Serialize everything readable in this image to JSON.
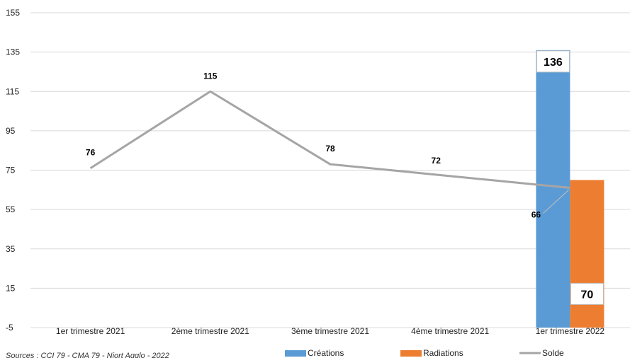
{
  "chart_data": {
    "type": "bar",
    "categories": [
      "1er trimestre 2021",
      "2ème trimestre 2021",
      "3ème trimestre 2021",
      "4ème trimestre 2021",
      "1er trimestre 2022"
    ],
    "series": [
      {
        "name": "Créations",
        "kind": "bar",
        "values": [
          null,
          null,
          null,
          null,
          136
        ],
        "color": "#5B9BD5"
      },
      {
        "name": "Radiations",
        "kind": "bar",
        "values": [
          null,
          null,
          null,
          null,
          70
        ],
        "color": "#ED7D31"
      },
      {
        "name": "Solde",
        "kind": "line",
        "values": [
          76,
          115,
          78,
          72,
          66
        ],
        "color": "#A5A5A5"
      }
    ],
    "y_ticks": [
      "155",
      "135",
      "115",
      "95",
      "75",
      "55",
      "35",
      "15",
      "-5"
    ],
    "ylim": [
      -5,
      155
    ],
    "grid": true,
    "legend_position": "bottom",
    "source": "Sources : CCI 79 - CMA 79 - Niort Agglo - 2022"
  }
}
